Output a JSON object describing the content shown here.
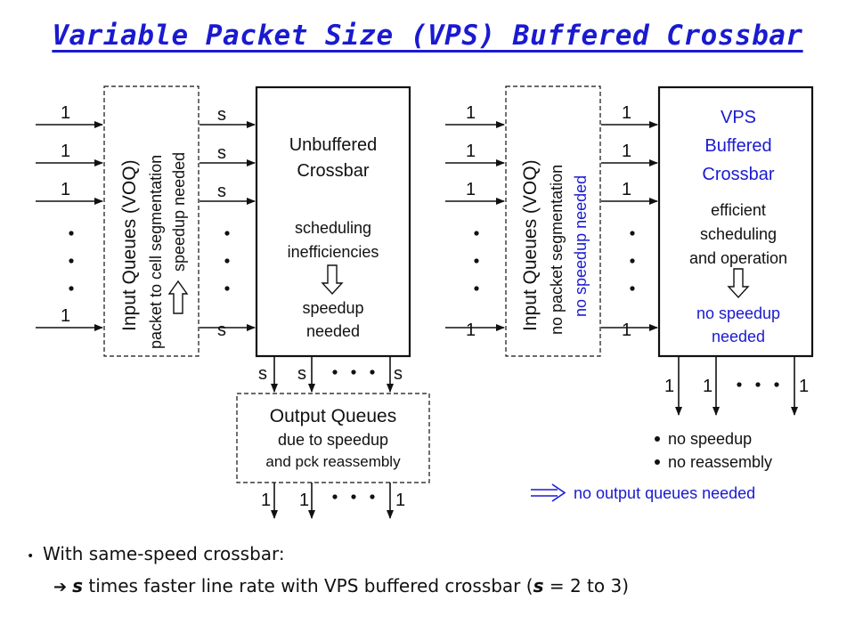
{
  "title": "Variable Packet Size (VPS) Buffered Crossbar",
  "left": {
    "input_queue_label": "Input Queues (VOQ)",
    "input_queue_sub": "packet to cell segmentation",
    "input_queue_sub2": "speedup needed",
    "input_rate": "1",
    "link_rate": "s",
    "crossbar_lines": [
      "Unbuffered",
      "Crossbar"
    ],
    "crossbar_note": [
      "scheduling",
      "inefficiencies"
    ],
    "crossbar_result": [
      "speedup",
      "needed"
    ],
    "output_queue_lines": [
      "Output Queues",
      "due to speedup",
      "and pck reassembly"
    ],
    "output_rate": "1"
  },
  "right": {
    "input_queue_label": "Input Queues (VOQ)",
    "input_queue_sub": "no packet segmentation",
    "input_queue_sub2": "no speedup needed",
    "input_rate": "1",
    "crossbar_lines": [
      "VPS",
      "Buffered",
      "Crossbar"
    ],
    "crossbar_note": [
      "efficient",
      "scheduling",
      "and operation"
    ],
    "crossbar_result": [
      "no speedup",
      "needed"
    ],
    "output_rate": "1",
    "bullets": [
      "no speedup",
      "no reassembly"
    ],
    "conclusion": "no output queues needed"
  },
  "footer": {
    "bullet": "With same-speed crossbar:",
    "line_prefix": "",
    "line_var": "s",
    "line_mid": " times faster line rate with VPS buffered crossbar (",
    "line_var2": "s",
    "line_end": " = 2 to 3)"
  },
  "colors": {
    "blue": "#1a1ad0",
    "black": "#111111"
  }
}
